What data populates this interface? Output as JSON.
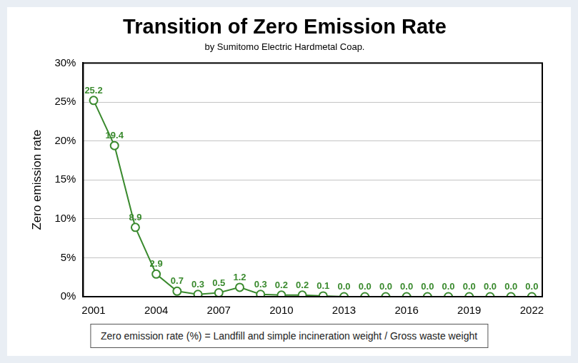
{
  "chart_data": {
    "type": "line",
    "title": "Transition of Zero Emission Rate",
    "subtitle": "by Sumitomo Electric Hardmetal Coap.",
    "y_label": "Zero emission rate",
    "footnote": "Zero emission rate (%) = Landfill and simple incineration weight / Gross waste weight",
    "categories": [
      "2001",
      null,
      null,
      "2004",
      null,
      null,
      "2007",
      null,
      null,
      "2010",
      null,
      null,
      "2013",
      null,
      null,
      "2016",
      null,
      null,
      "2019",
      null,
      null,
      "2022"
    ],
    "values": [
      25.2,
      19.4,
      8.9,
      2.9,
      0.7,
      0.3,
      0.5,
      1.2,
      0.3,
      0.2,
      0.2,
      0.1,
      0.0,
      0.0,
      0.0,
      0.0,
      0.0,
      0.0,
      0.0,
      0.0,
      0.0,
      0.0
    ],
    "value_labels": [
      "25.2",
      "19.4",
      "8.9",
      "2.9",
      "0.7",
      "0.3",
      "0.5",
      "1.2",
      "0.3",
      "0.2",
      "0.2",
      "0.1",
      "0.0",
      "0.0",
      "0.0",
      "0.0",
      "0.0",
      "0.0",
      "0.0",
      "0.0",
      "0.0",
      "0.0"
    ],
    "color": "#3a8a2e",
    "marker": "circle",
    "line_style": "solid",
    "ylim": [
      0,
      30
    ],
    "yticks": [
      {
        "value": 0,
        "label": "0%"
      },
      {
        "value": 5,
        "label": "5%"
      },
      {
        "value": 10,
        "label": "10%"
      },
      {
        "value": 15,
        "label": "15%"
      },
      {
        "value": 20,
        "label": "20%"
      },
      {
        "value": 25,
        "label": "25%"
      },
      {
        "value": 30,
        "label": "30%"
      }
    ],
    "grid": true,
    "data_labels": true
  }
}
